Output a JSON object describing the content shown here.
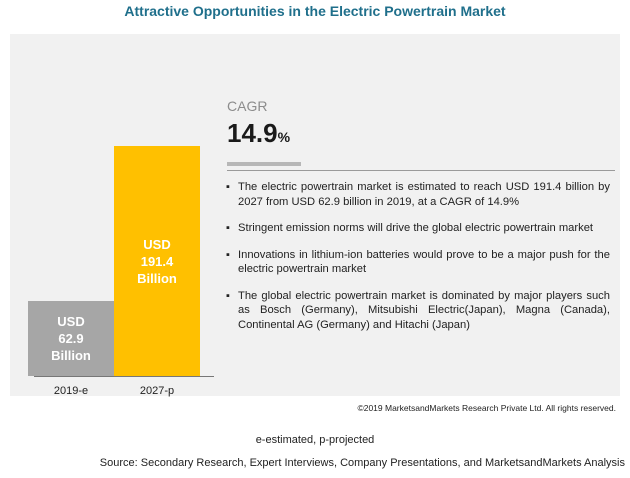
{
  "title": "Attractive Opportunities in the Electric Powertrain Market",
  "chart_data": {
    "type": "bar",
    "categories": [
      "2019-e",
      "2027-p"
    ],
    "values": [
      62.9,
      191.4
    ],
    "unit": "USD Billion",
    "data_labels": [
      [
        "USD",
        "62.9",
        "Billion"
      ],
      [
        "USD",
        "191.4",
        "Billion"
      ]
    ],
    "colors": [
      "#a6a6a6",
      "#ffc000"
    ],
    "title": "Attractive Opportunities in the Electric Powertrain Market",
    "xlabel": "",
    "ylabel": "",
    "ylim": [
      0,
      215
    ],
    "grid": false
  },
  "cagr": {
    "label": "CAGR",
    "value": "14.9",
    "unit": "%"
  },
  "bullets": [
    "The electric powertrain market is estimated to reach USD 191.4 billion by 2027 from USD 62.9 billion in 2019, at a CAGR of 14.9%",
    "Stringent emission norms will drive the global electric powertrain market",
    "Innovations in lithium-ion batteries would prove to be a major push for the electric powertrain market",
    "The global electric powertrain market is dominated by major players such as Bosch (Germany), Mitsubishi Electric(Japan), Magna (Canada), Continental AG (Germany) and Hitachi (Japan)"
  ],
  "bullet_glyph": "▪",
  "copyright": "©2019 MarketsandMarkets Research Private Ltd. All rights reserved.",
  "footnote": "e-estimated, p-projected",
  "source": "Source: Secondary Research, Expert Interviews, Company Presentations, and MarketsandMarkets Analysis"
}
